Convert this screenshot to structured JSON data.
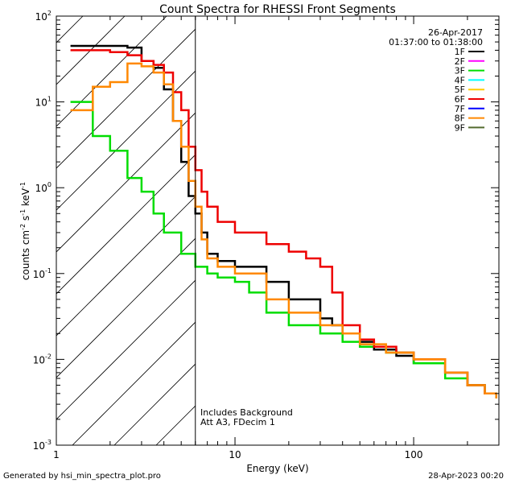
{
  "chart_data": {
    "type": "line",
    "title": "Count Spectra for RHESSI Front Segments",
    "xlabel": "Energy (keV)",
    "ylabel": "counts cm",
    "ylabel_sup1": "-2",
    "ylabel_mid": " s",
    "ylabel_sup2": "-1",
    "ylabel_tail": " keV",
    "ylabel_sup3": "-1",
    "xscale": "log",
    "yscale": "log",
    "xlim": [
      1,
      300
    ],
    "ylim": [
      0.001,
      100
    ],
    "x_ticks": [
      {
        "value": 1,
        "label": "1"
      },
      {
        "value": 10,
        "label": "10"
      },
      {
        "value": 100,
        "label": "100"
      }
    ],
    "y_ticks": [
      {
        "value": 100,
        "base": "10",
        "exp": "2"
      },
      {
        "value": 10,
        "base": "10",
        "exp": "1"
      },
      {
        "value": 1,
        "base": "10",
        "exp": "0"
      },
      {
        "value": 0.1,
        "base": "10",
        "exp": "-1"
      },
      {
        "value": 0.01,
        "base": "10",
        "exp": "-2"
      },
      {
        "value": 0.001,
        "base": "10",
        "exp": "-3"
      }
    ],
    "date": "26-Apr-2017",
    "time_range": "01:37:00 to 01:38:00",
    "threshold_energy": 6,
    "annotation_lines": [
      "Includes Background",
      "Att A3, FDecim 1"
    ],
    "legend": [
      {
        "name": "1F",
        "color": "#000000"
      },
      {
        "name": "2F",
        "color": "#ff00ff"
      },
      {
        "name": "3F",
        "color": "#00dd00"
      },
      {
        "name": "4F",
        "color": "#00ffff"
      },
      {
        "name": "5F",
        "color": "#ffcc00"
      },
      {
        "name": "6F",
        "color": "#ee0000"
      },
      {
        "name": "7F",
        "color": "#0000ff"
      },
      {
        "name": "8F",
        "color": "#ff8800"
      },
      {
        "name": "9F",
        "color": "#556b2f"
      }
    ],
    "series": [
      {
        "name": "1F",
        "color": "#000000",
        "points": [
          [
            1.2,
            45
          ],
          [
            2.0,
            45
          ],
          [
            2.5,
            43
          ],
          [
            3.0,
            30
          ],
          [
            3.5,
            25
          ],
          [
            4.0,
            14
          ],
          [
            4.5,
            6
          ],
          [
            5.0,
            2
          ],
          [
            5.5,
            0.8
          ],
          [
            6.0,
            0.5
          ],
          [
            6.5,
            0.3
          ],
          [
            7.0,
            0.17
          ],
          [
            8.0,
            0.14
          ],
          [
            10,
            0.12
          ],
          [
            15,
            0.08
          ],
          [
            20,
            0.05
          ],
          [
            25,
            0.05
          ],
          [
            30,
            0.03
          ],
          [
            35,
            0.025
          ],
          [
            40,
            0.02
          ],
          [
            50,
            0.016
          ],
          [
            60,
            0.013
          ],
          [
            80,
            0.011
          ],
          [
            100,
            0.009
          ],
          [
            150,
            0.007
          ],
          [
            200,
            0.005
          ],
          [
            250,
            0.004
          ],
          [
            290,
            0.004
          ]
        ]
      },
      {
        "name": "3F",
        "color": "#00dd00",
        "points": [
          [
            1.2,
            10
          ],
          [
            1.4,
            10
          ],
          [
            1.6,
            4
          ],
          [
            2.0,
            2.7
          ],
          [
            2.5,
            1.3
          ],
          [
            3.0,
            0.9
          ],
          [
            3.5,
            0.5
          ],
          [
            4.0,
            0.3
          ],
          [
            5.0,
            0.17
          ],
          [
            6.0,
            0.12
          ],
          [
            7.0,
            0.1
          ],
          [
            8.0,
            0.09
          ],
          [
            10,
            0.08
          ],
          [
            12,
            0.06
          ],
          [
            15,
            0.035
          ],
          [
            20,
            0.025
          ],
          [
            30,
            0.02
          ],
          [
            40,
            0.016
          ],
          [
            50,
            0.014
          ],
          [
            70,
            0.012
          ],
          [
            100,
            0.009
          ],
          [
            150,
            0.006
          ],
          [
            200,
            0.005
          ],
          [
            250,
            0.004
          ],
          [
            290,
            0.0035
          ]
        ]
      },
      {
        "name": "6F",
        "color": "#ee0000",
        "points": [
          [
            1.2,
            40
          ],
          [
            2.0,
            38
          ],
          [
            2.5,
            35
          ],
          [
            3.0,
            30
          ],
          [
            3.5,
            27
          ],
          [
            4.0,
            22
          ],
          [
            4.5,
            13
          ],
          [
            5.0,
            8
          ],
          [
            5.5,
            3
          ],
          [
            6.0,
            1.6
          ],
          [
            6.5,
            0.9
          ],
          [
            7.0,
            0.6
          ],
          [
            8.0,
            0.4
          ],
          [
            10,
            0.3
          ],
          [
            15,
            0.22
          ],
          [
            20,
            0.18
          ],
          [
            25,
            0.15
          ],
          [
            30,
            0.12
          ],
          [
            35,
            0.06
          ],
          [
            40,
            0.025
          ],
          [
            50,
            0.017
          ],
          [
            60,
            0.014
          ],
          [
            80,
            0.012
          ],
          [
            100,
            0.01
          ],
          [
            150,
            0.007
          ],
          [
            200,
            0.005
          ],
          [
            250,
            0.004
          ],
          [
            290,
            0.004
          ]
        ]
      },
      {
        "name": "8F",
        "color": "#ff8800",
        "points": [
          [
            1.2,
            8
          ],
          [
            1.4,
            8
          ],
          [
            1.6,
            15
          ],
          [
            2.0,
            17
          ],
          [
            2.5,
            28
          ],
          [
            3.0,
            26
          ],
          [
            3.5,
            22
          ],
          [
            4.0,
            16
          ],
          [
            4.5,
            6
          ],
          [
            5.0,
            3
          ],
          [
            5.5,
            1.2
          ],
          [
            6.0,
            0.6
          ],
          [
            6.5,
            0.25
          ],
          [
            7.0,
            0.15
          ],
          [
            8.0,
            0.12
          ],
          [
            10,
            0.1
          ],
          [
            15,
            0.05
          ],
          [
            20,
            0.035
          ],
          [
            30,
            0.025
          ],
          [
            40,
            0.02
          ],
          [
            50,
            0.015
          ],
          [
            70,
            0.012
          ],
          [
            100,
            0.01
          ],
          [
            150,
            0.007
          ],
          [
            200,
            0.005
          ],
          [
            250,
            0.004
          ],
          [
            290,
            0.0035
          ]
        ]
      }
    ]
  },
  "footer": {
    "generated_by": "Generated by hsi_min_spectra_plot.pro",
    "generated_at": "28-Apr-2023 00:20"
  }
}
